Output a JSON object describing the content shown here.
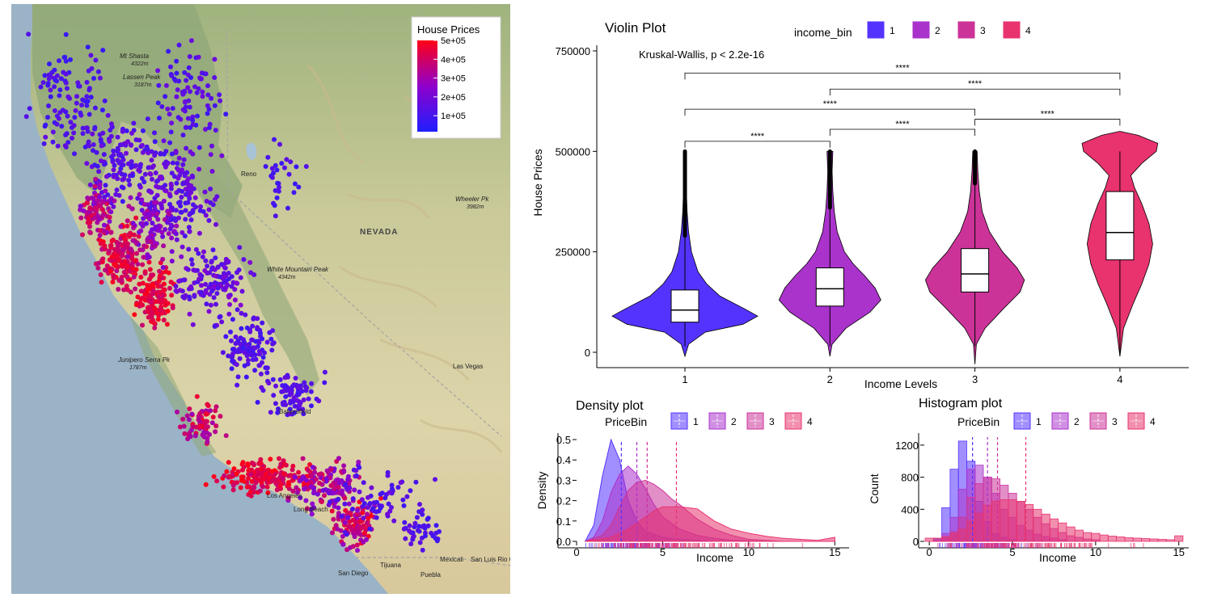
{
  "map": {
    "legend": {
      "title": "House Prices",
      "ticks": [
        "5e+05",
        "4e+05",
        "3e+05",
        "2e+05",
        "1e+05"
      ],
      "tick_values": [
        500000,
        400000,
        300000,
        200000,
        100000
      ],
      "range": [
        15000,
        500000
      ],
      "colors": {
        "low": "#1f1fff",
        "mid": "#8f00cc",
        "high": "#ff0016"
      }
    },
    "places": [
      {
        "name": "Mt Shasta",
        "sub": "4322m"
      },
      {
        "name": "Lassen Peak",
        "sub": "3187m"
      },
      {
        "name": "Reno",
        "sub": ""
      },
      {
        "name": "NEVADA",
        "sub": ""
      },
      {
        "name": "Wheeler Pk",
        "sub": "3982m"
      },
      {
        "name": "White Mountain Peak",
        "sub": "4342m"
      },
      {
        "name": "Las Vegas",
        "sub": ""
      },
      {
        "name": "Junipero Serra Pk",
        "sub": "1787m"
      },
      {
        "name": "Los Angeles",
        "sub": ""
      },
      {
        "name": "Long Beach",
        "sub": ""
      },
      {
        "name": "San Diego",
        "sub": ""
      },
      {
        "name": "Tijuana",
        "sub": ""
      },
      {
        "name": "Mexicali",
        "sub": ""
      },
      {
        "name": "San Luis Rio Colorado",
        "sub": ""
      },
      {
        "name": "Puebla",
        "sub": ""
      },
      {
        "name": "Bakersfield",
        "sub": ""
      }
    ]
  },
  "chart_data": [
    {
      "type": "violin",
      "title": "Violin Plot",
      "xlabel": "Income Levels",
      "ylabel": "House Prices",
      "legend_title": "income_bin",
      "categories": [
        "1",
        "2",
        "3",
        "4"
      ],
      "colors": [
        "#5533ff",
        "#aa33cc",
        "#cc3399",
        "#e8336e"
      ],
      "ylim": [
        -30000,
        770000
      ],
      "yticks": [
        0,
        250000,
        500000,
        750000
      ],
      "ytick_labels": [
        "0",
        "250000",
        "500000",
        "750000"
      ],
      "test_label": "Kruskal-Wallis, p < 2.2e-16",
      "box": [
        {
          "q1": 75000,
          "median": 105000,
          "q3": 155000,
          "whisker_low": 15000,
          "whisker_high": 290000
        },
        {
          "q1": 115000,
          "median": 158000,
          "q3": 210000,
          "whisker_low": 15000,
          "whisker_high": 360000
        },
        {
          "q1": 150000,
          "median": 195000,
          "q3": 258000,
          "whisker_low": 15000,
          "whisker_high": 420000
        },
        {
          "q1": 230000,
          "median": 298000,
          "q3": 400000,
          "whisker_low": -10000,
          "whisker_high": 500000
        }
      ],
      "outliers": [
        {
          "from": 290000,
          "to": 500000
        },
        {
          "from": 360000,
          "to": 500000
        },
        {
          "from": 420000,
          "to": 500000
        },
        {
          "from": 500000,
          "to": 500000
        }
      ],
      "violin_profile": [
        {
          "y": [
            -10000,
            20000,
            50000,
            70000,
            90000,
            110000,
            140000,
            170000,
            200000,
            250000,
            300000,
            350000,
            400000,
            450000,
            500000
          ],
          "w": [
            0.0,
            0.05,
            0.28,
            0.8,
            1.0,
            0.8,
            0.48,
            0.3,
            0.18,
            0.09,
            0.05,
            0.03,
            0.02,
            0.02,
            0.02
          ]
        },
        {
          "y": [
            -10000,
            20000,
            60000,
            100000,
            130000,
            160000,
            190000,
            220000,
            250000,
            300000,
            350000,
            400000,
            450000,
            500000
          ],
          "w": [
            0.0,
            0.03,
            0.22,
            0.55,
            0.7,
            0.62,
            0.48,
            0.32,
            0.2,
            0.1,
            0.06,
            0.04,
            0.03,
            0.04
          ]
        },
        {
          "y": [
            -30000,
            20000,
            60000,
            110000,
            150000,
            180000,
            210000,
            250000,
            300000,
            350000,
            400000,
            450000,
            500000
          ],
          "w": [
            0.0,
            0.02,
            0.14,
            0.4,
            0.62,
            0.68,
            0.58,
            0.38,
            0.2,
            0.1,
            0.06,
            0.04,
            0.03
          ]
        },
        {
          "y": [
            -10000,
            60000,
            120000,
            170000,
            220000,
            270000,
            320000,
            370000,
            410000,
            440000,
            470000,
            500000,
            520000,
            540000,
            550000
          ],
          "w": [
            0.0,
            0.05,
            0.18,
            0.3,
            0.4,
            0.45,
            0.4,
            0.3,
            0.2,
            0.15,
            0.3,
            0.5,
            0.52,
            0.25,
            0.0
          ]
        }
      ],
      "comparisons": [
        {
          "a": 1,
          "b": 2,
          "y": 525000,
          "label": "****"
        },
        {
          "a": 2,
          "b": 3,
          "y": 555000,
          "label": "****"
        },
        {
          "a": 3,
          "b": 4,
          "y": 580000,
          "label": "****"
        },
        {
          "a": 1,
          "b": 3,
          "y": 605000,
          "label": "****"
        },
        {
          "a": 2,
          "b": 4,
          "y": 655000,
          "label": "****"
        },
        {
          "a": 1,
          "b": 4,
          "y": 695000,
          "label": "****"
        }
      ]
    },
    {
      "type": "area",
      "title": "Density plot",
      "xlabel": "Income",
      "ylabel": "Density",
      "legend_title": "PriceBin",
      "categories": [
        "1",
        "2",
        "3",
        "4"
      ],
      "colors": [
        "#5533ff",
        "#aa33cc",
        "#cc3399",
        "#e8336e"
      ],
      "xlim": [
        0,
        15.5
      ],
      "ylim": [
        0,
        0.52
      ],
      "xticks": [
        0,
        5,
        10,
        15
      ],
      "yticks": [
        0.0,
        0.1,
        0.2,
        0.3,
        0.4,
        0.5
      ],
      "ytick_labels": [
        "0.0",
        "0.1",
        "0.2",
        "0.3",
        "0.4",
        "0.5"
      ],
      "means": [
        2.6,
        3.5,
        4.1,
        5.8
      ],
      "series": [
        {
          "name": "1",
          "x": [
            0.5,
            1.0,
            1.5,
            2.0,
            2.5,
            3.0,
            3.5,
            4.0,
            5.0,
            6.0,
            7.0,
            8.0
          ],
          "y": [
            0.0,
            0.08,
            0.32,
            0.5,
            0.4,
            0.2,
            0.1,
            0.05,
            0.02,
            0.01,
            0.005,
            0.0
          ]
        },
        {
          "name": "2",
          "x": [
            0.5,
            1.0,
            1.5,
            2.0,
            2.5,
            3.0,
            3.5,
            4.0,
            4.5,
            5.0,
            6.0,
            7.0,
            8.0,
            9.0,
            11.0
          ],
          "y": [
            0.0,
            0.02,
            0.1,
            0.24,
            0.33,
            0.37,
            0.33,
            0.26,
            0.18,
            0.12,
            0.06,
            0.03,
            0.015,
            0.005,
            0.0
          ]
        },
        {
          "name": "3",
          "x": [
            0.5,
            1.5,
            2.0,
            2.5,
            3.0,
            3.5,
            4.0,
            4.5,
            5.0,
            5.5,
            6.0,
            7.0,
            8.0,
            9.0,
            10.0,
            12.0
          ],
          "y": [
            0.0,
            0.03,
            0.08,
            0.17,
            0.25,
            0.29,
            0.3,
            0.28,
            0.25,
            0.21,
            0.18,
            0.11,
            0.06,
            0.03,
            0.01,
            0.0
          ]
        },
        {
          "name": "4",
          "x": [
            0.5,
            2.0,
            3.0,
            4.0,
            4.5,
            5.0,
            6.0,
            7.0,
            7.5,
            8.0,
            9.0,
            10.0,
            11.0,
            12.0,
            13.0,
            14.0,
            15.0
          ],
          "y": [
            0.0,
            0.02,
            0.06,
            0.12,
            0.15,
            0.17,
            0.17,
            0.16,
            0.13,
            0.1,
            0.06,
            0.04,
            0.025,
            0.015,
            0.01,
            0.005,
            0.02
          ]
        }
      ]
    },
    {
      "type": "bar",
      "title": "Histogram plot",
      "xlabel": "Income",
      "ylabel": "Count",
      "legend_title": "PriceBin",
      "categories": [
        "1",
        "2",
        "3",
        "4"
      ],
      "colors": [
        "#5533ff",
        "#aa33cc",
        "#cc3399",
        "#e8336e"
      ],
      "xlim": [
        -0.3,
        15.5
      ],
      "ylim": [
        0,
        1320
      ],
      "xticks": [
        0,
        5,
        10,
        15
      ],
      "yticks": [
        0,
        400,
        800,
        1200
      ],
      "ytick_labels": [
        "0",
        "400",
        "800",
        "1200"
      ],
      "means": [
        2.6,
        3.5,
        4.1,
        5.8
      ],
      "bin_width": 0.5,
      "series": [
        {
          "name": "1",
          "x": [
            0.5,
            1.0,
            1.5,
            2.0,
            2.5,
            3.0,
            3.5,
            4.0,
            4.5,
            5.0
          ],
          "y": [
            30,
            420,
            900,
            1250,
            1000,
            500,
            250,
            100,
            50,
            20
          ]
        },
        {
          "name": "2",
          "x": [
            0.5,
            1.0,
            1.5,
            2.0,
            2.5,
            3.0,
            3.5,
            4.0,
            4.5,
            5.0,
            5.5,
            6.0,
            6.5,
            7.0,
            7.5,
            8.0
          ],
          "y": [
            10,
            100,
            300,
            650,
            900,
            950,
            800,
            600,
            400,
            300,
            200,
            140,
            90,
            60,
            40,
            20
          ]
        },
        {
          "name": "3",
          "x": [
            0.5,
            1.0,
            1.5,
            2.0,
            2.5,
            3.0,
            3.5,
            4.0,
            4.5,
            5.0,
            5.5,
            6.0,
            6.5,
            7.0,
            7.5,
            8.0,
            8.5,
            9.0,
            9.5,
            10.0
          ],
          "y": [
            5,
            40,
            120,
            300,
            550,
            720,
            800,
            780,
            700,
            600,
            500,
            400,
            300,
            220,
            160,
            110,
            70,
            50,
            30,
            20
          ]
        },
        {
          "name": "4",
          "x": [
            0.0,
            0.5,
            1.0,
            1.5,
            2.0,
            2.5,
            3.0,
            3.5,
            4.0,
            4.5,
            5.0,
            5.5,
            6.0,
            6.5,
            7.0,
            7.5,
            8.0,
            8.5,
            9.0,
            9.5,
            10.0,
            10.5,
            11.0,
            11.5,
            12.0,
            12.5,
            13.0,
            13.5,
            14.0,
            14.5,
            15.0
          ],
          "y": [
            40,
            40,
            60,
            100,
            150,
            250,
            350,
            450,
            500,
            520,
            520,
            500,
            460,
            400,
            340,
            280,
            230,
            180,
            140,
            110,
            100,
            80,
            65,
            55,
            45,
            40,
            35,
            30,
            25,
            20,
            70
          ]
        }
      ]
    }
  ]
}
